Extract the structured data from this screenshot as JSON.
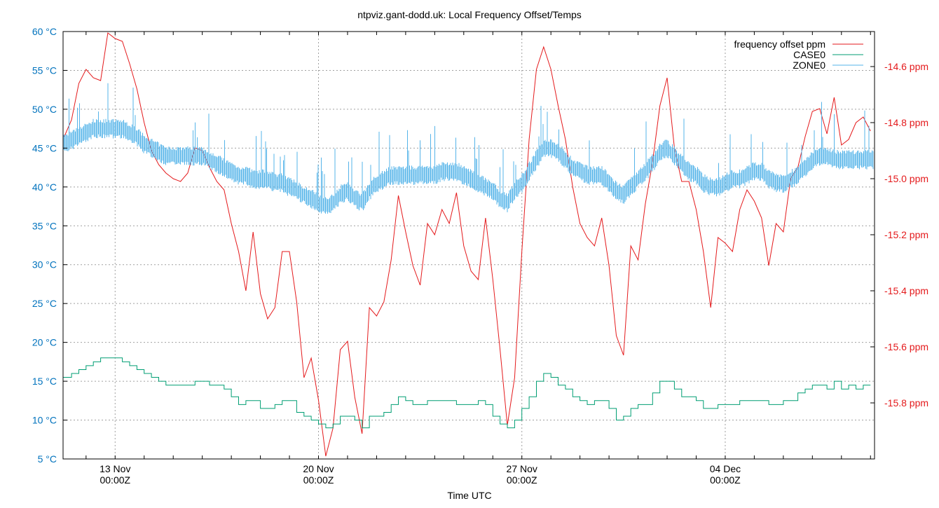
{
  "chart_data": {
    "type": "line",
    "title": "ntpviz.gant-dodd.uk: Local Frequency Offset/Temps",
    "xlabel": "Time UTC",
    "ylabel": "",
    "y2label": "",
    "xlim": [
      "11 Nov 05:00",
      "09 Dec 03:20"
    ],
    "ylim": [
      5,
      60
    ],
    "y2lim": [
      -16.0,
      -14.475
    ],
    "grid": true,
    "legend_position": "top-right",
    "x_ticks": [
      {
        "at": "13 Nov 00:00",
        "line1": "13 Nov",
        "line2": "00:00Z"
      },
      {
        "at": "20 Nov 00:00",
        "line1": "20 Nov",
        "line2": "00:00Z"
      },
      {
        "at": "27 Nov 00:00",
        "line1": "27 Nov",
        "line2": "00:00Z"
      },
      {
        "at": "04 Dec 00:00",
        "line1": "04 Dec",
        "line2": "00:00Z"
      }
    ],
    "y_ticks": [
      {
        "value": 5,
        "label": "5 °C"
      },
      {
        "value": 10,
        "label": "10 °C"
      },
      {
        "value": 15,
        "label": "15 °C"
      },
      {
        "value": 20,
        "label": "20 °C"
      },
      {
        "value": 25,
        "label": "25 °C"
      },
      {
        "value": 30,
        "label": "30 °C"
      },
      {
        "value": 35,
        "label": "35 °C"
      },
      {
        "value": 40,
        "label": "40 °C"
      },
      {
        "value": 45,
        "label": "45 °C"
      },
      {
        "value": 50,
        "label": "50 °C"
      },
      {
        "value": 55,
        "label": "55 °C"
      },
      {
        "value": 60,
        "label": "60 °C"
      }
    ],
    "y2_ticks": [
      {
        "value": -14.6,
        "label": "-14.6 ppm"
      },
      {
        "value": -14.8,
        "label": "-14.8 ppm"
      },
      {
        "value": -15.0,
        "label": "-15.0 ppm"
      },
      {
        "value": -15.2,
        "label": "-15.2 ppm"
      },
      {
        "value": -15.4,
        "label": "-15.4 ppm"
      },
      {
        "value": -15.6,
        "label": "-15.6 ppm"
      },
      {
        "value": -15.8,
        "label": "-15.8 ppm"
      }
    ],
    "colors": {
      "left_axis": "#0072bd",
      "right_axis": "#e41a1c"
    },
    "x": [
      "11 Nov 06:00",
      "11 Nov 12:00",
      "11 Nov 18:00",
      "12 Nov 00:00",
      "12 Nov 06:00",
      "12 Nov 12:00",
      "12 Nov 18:00",
      "13 Nov 00:00",
      "13 Nov 06:00",
      "13 Nov 12:00",
      "13 Nov 18:00",
      "14 Nov 00:00",
      "14 Nov 06:00",
      "14 Nov 12:00",
      "14 Nov 18:00",
      "15 Nov 00:00",
      "15 Nov 06:00",
      "15 Nov 12:00",
      "15 Nov 18:00",
      "16 Nov 00:00",
      "16 Nov 06:00",
      "16 Nov 12:00",
      "16 Nov 18:00",
      "17 Nov 00:00",
      "17 Nov 06:00",
      "17 Nov 12:00",
      "17 Nov 18:00",
      "18 Nov 00:00",
      "18 Nov 06:00",
      "18 Nov 12:00",
      "18 Nov 18:00",
      "19 Nov 00:00",
      "19 Nov 06:00",
      "19 Nov 12:00",
      "19 Nov 18:00",
      "20 Nov 00:00",
      "20 Nov 06:00",
      "20 Nov 12:00",
      "20 Nov 18:00",
      "21 Nov 00:00",
      "21 Nov 06:00",
      "21 Nov 12:00",
      "21 Nov 18:00",
      "22 Nov 00:00",
      "22 Nov 06:00",
      "22 Nov 12:00",
      "22 Nov 18:00",
      "23 Nov 00:00",
      "23 Nov 06:00",
      "23 Nov 12:00",
      "23 Nov 18:00",
      "24 Nov 00:00",
      "24 Nov 06:00",
      "24 Nov 12:00",
      "24 Nov 18:00",
      "25 Nov 00:00",
      "25 Nov 06:00",
      "25 Nov 12:00",
      "25 Nov 18:00",
      "26 Nov 00:00",
      "26 Nov 06:00",
      "26 Nov 12:00",
      "26 Nov 18:00",
      "27 Nov 00:00",
      "27 Nov 06:00",
      "27 Nov 12:00",
      "27 Nov 18:00",
      "28 Nov 00:00",
      "28 Nov 06:00",
      "28 Nov 12:00",
      "28 Nov 18:00",
      "29 Nov 00:00",
      "29 Nov 06:00",
      "29 Nov 12:00",
      "29 Nov 18:00",
      "30 Nov 00:00",
      "30 Nov 06:00",
      "30 Nov 12:00",
      "30 Nov 18:00",
      "01 Dec 00:00",
      "01 Dec 06:00",
      "01 Dec 12:00",
      "01 Dec 18:00",
      "02 Dec 00:00",
      "02 Dec 06:00",
      "02 Dec 12:00",
      "02 Dec 18:00",
      "03 Dec 00:00",
      "03 Dec 06:00",
      "03 Dec 12:00",
      "03 Dec 18:00",
      "04 Dec 00:00",
      "04 Dec 06:00",
      "04 Dec 12:00",
      "04 Dec 18:00",
      "05 Dec 00:00",
      "05 Dec 06:00",
      "05 Dec 12:00",
      "05 Dec 18:00",
      "06 Dec 00:00",
      "06 Dec 06:00",
      "06 Dec 12:00",
      "06 Dec 18:00",
      "07 Dec 00:00",
      "07 Dec 06:00",
      "07 Dec 12:00",
      "07 Dec 18:00",
      "08 Dec 00:00",
      "08 Dec 06:00",
      "08 Dec 12:00",
      "08 Dec 18:00",
      "09 Dec 00:00"
    ],
    "series": [
      {
        "name": "frequency offset ppm",
        "axis": "right",
        "color": "#e41a1c",
        "values": [
          -14.85,
          -14.79,
          -14.66,
          -14.61,
          -14.64,
          -14.65,
          -14.48,
          -14.5,
          -14.51,
          -14.59,
          -14.68,
          -14.8,
          -14.9,
          -14.95,
          -14.98,
          -15.0,
          -15.01,
          -14.98,
          -14.89,
          -14.9,
          -14.96,
          -15.01,
          -15.04,
          -15.16,
          -15.26,
          -15.4,
          -15.19,
          -15.41,
          -15.5,
          -15.46,
          -15.26,
          -15.26,
          -15.44,
          -15.71,
          -15.64,
          -15.79,
          -15.99,
          -15.89,
          -15.61,
          -15.58,
          -15.78,
          -15.91,
          -15.46,
          -15.49,
          -15.44,
          -15.29,
          -15.06,
          -15.19,
          -15.31,
          -15.38,
          -15.16,
          -15.2,
          -15.11,
          -15.16,
          -15.05,
          -15.24,
          -15.33,
          -15.36,
          -15.14,
          -15.36,
          -15.61,
          -15.88,
          -15.71,
          -15.26,
          -14.86,
          -14.61,
          -14.53,
          -14.61,
          -14.74,
          -14.86,
          -15.03,
          -15.16,
          -15.21,
          -15.24,
          -15.14,
          -15.31,
          -15.56,
          -15.63,
          -15.24,
          -15.29,
          -15.09,
          -14.94,
          -14.74,
          -14.64,
          -14.89,
          -15.01,
          -15.01,
          -15.11,
          -15.26,
          -15.46,
          -15.21,
          -15.23,
          -15.26,
          -15.11,
          -15.04,
          -15.08,
          -15.14,
          -15.31,
          -15.16,
          -15.19,
          -15.0,
          -14.96,
          -14.85,
          -14.76,
          -14.75,
          -14.84,
          -14.71,
          -14.88,
          -14.86,
          -14.8,
          -14.78,
          -14.83
        ]
      },
      {
        "name": "CASE0",
        "axis": "left",
        "color": "#009e73",
        "values": [
          15.5,
          16,
          16.5,
          17,
          17.5,
          18,
          18,
          18,
          17.5,
          17,
          16.5,
          16,
          15.5,
          15,
          14.5,
          14.5,
          14.5,
          14.5,
          15,
          15,
          14.5,
          14.5,
          14,
          13,
          12,
          12.5,
          12.5,
          11.5,
          11.5,
          12,
          12.5,
          12.5,
          11,
          10.5,
          10,
          9.5,
          9,
          9.5,
          10.5,
          10.5,
          10,
          9,
          10.5,
          10.5,
          11,
          12,
          13,
          12.5,
          12,
          12,
          12.5,
          12.5,
          12.5,
          12.5,
          12,
          12,
          12,
          12.5,
          12,
          10.5,
          9.5,
          9,
          10,
          11.5,
          13,
          15,
          16,
          15.5,
          14.5,
          14,
          13,
          12.5,
          12,
          12.5,
          12.5,
          11.5,
          10,
          10.5,
          11.5,
          12,
          12,
          13.5,
          15,
          15,
          14,
          13,
          13,
          12.5,
          11.5,
          11.5,
          12,
          12,
          12,
          12.5,
          12.5,
          12.5,
          12.5,
          12,
          12,
          12.5,
          12.5,
          13.5,
          14,
          14.5,
          14.5,
          14,
          15,
          14,
          14.5,
          14,
          14.5,
          14.5
        ]
      },
      {
        "name": "ZONE0",
        "axis": "left",
        "color": "#56b4e9",
        "values": [
          45.5,
          46,
          46.5,
          47,
          47.5,
          47.5,
          47.5,
          47.5,
          47.5,
          47,
          46.5,
          45.5,
          45,
          44.5,
          44,
          44,
          44,
          44,
          44,
          44,
          43.5,
          43,
          42.5,
          42,
          41.5,
          41.5,
          41,
          41,
          41,
          40.5,
          40.5,
          40,
          39.5,
          39,
          38.5,
          38,
          37.5,
          38,
          39,
          39.5,
          38.5,
          38,
          39.5,
          40.5,
          41,
          41.5,
          41.5,
          41.5,
          41.5,
          41.5,
          41.5,
          41.5,
          42,
          42,
          42,
          41.5,
          41,
          40.5,
          40,
          39.5,
          38.5,
          38,
          39.5,
          40.5,
          42,
          43.5,
          45,
          45,
          44.5,
          43.5,
          42.5,
          42,
          41.5,
          41.5,
          41.5,
          40.5,
          39.5,
          39,
          40,
          41,
          42,
          43,
          44.5,
          45,
          44,
          43,
          42,
          41.5,
          40.5,
          40,
          40,
          40.5,
          41,
          41,
          41.5,
          42,
          42,
          41,
          40.5,
          40.5,
          41,
          41.5,
          42.5,
          43.5,
          44,
          44,
          43.5,
          43.5,
          43.5,
          43.5,
          43.5,
          43.5
        ]
      }
    ]
  }
}
